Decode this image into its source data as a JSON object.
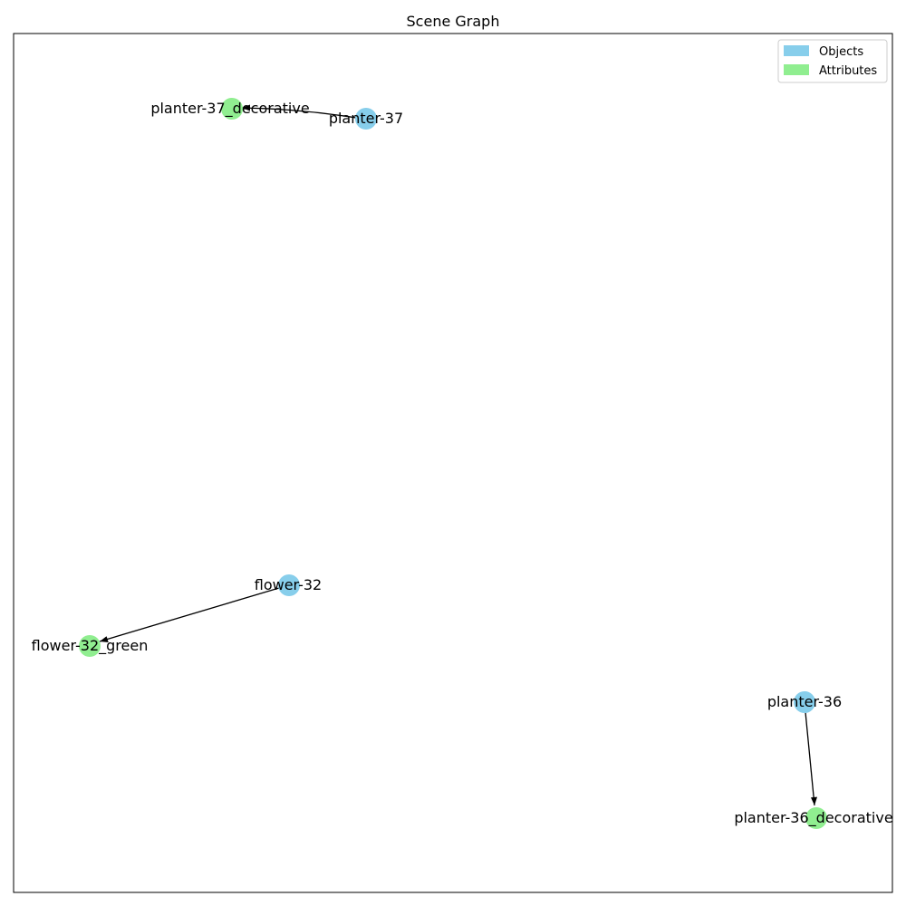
{
  "title": "Scene Graph",
  "colors": {
    "object": "#87ceeb",
    "attribute": "#90ee90",
    "edge": "#000000"
  },
  "legend": {
    "objects_label": "Objects",
    "attributes_label": "Attributes"
  },
  "nodes": [
    {
      "id": "planter-37",
      "label": "planter-37",
      "kind": "object"
    },
    {
      "id": "planter-37_decorative",
      "label": "planter-37_decorative",
      "kind": "attribute"
    },
    {
      "id": "flower-32",
      "label": "flower-32",
      "kind": "object"
    },
    {
      "id": "flower-32_green",
      "label": "flower-32_green",
      "kind": "attribute"
    },
    {
      "id": "planter-36",
      "label": "planter-36",
      "kind": "object"
    },
    {
      "id": "planter-36_decorative",
      "label": "planter-36_decorative",
      "kind": "attribute"
    }
  ],
  "edges": [
    {
      "from": "planter-37",
      "to": "planter-37_decorative"
    },
    {
      "from": "flower-32",
      "to": "flower-32_green"
    },
    {
      "from": "planter-36",
      "to": "planter-36_decorative"
    }
  ]
}
